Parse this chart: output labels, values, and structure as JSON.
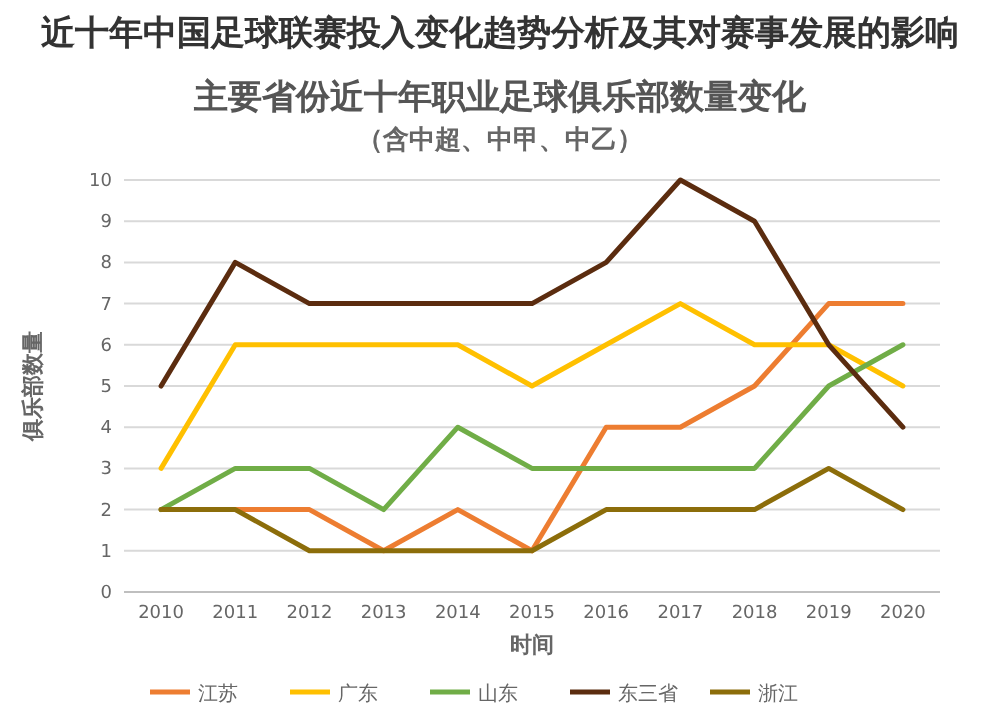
{
  "chart_data": {
    "type": "line",
    "title": "主要省份近十年职业足球俱乐部数量变化",
    "subtitle": "（含中超、中甲、中乙）",
    "xlabel": "时间",
    "ylabel": "俱乐部数量",
    "annotations": [
      "近十年中国足球联赛投入变化趋势分析及其对赛事发展的影响"
    ],
    "categories": [
      "2010",
      "2011",
      "2012",
      "2013",
      "2014",
      "2015",
      "2016",
      "2017",
      "2018",
      "2019",
      "2020"
    ],
    "series": [
      {
        "name": "江苏",
        "color": "#ed7d31",
        "values": [
          2,
          2,
          2,
          1,
          2,
          1,
          4,
          4,
          5,
          7,
          7
        ]
      },
      {
        "name": "广东",
        "color": "#ffc000",
        "values": [
          3,
          6,
          6,
          6,
          6,
          5,
          6,
          7,
          6,
          6,
          5
        ]
      },
      {
        "name": "山东",
        "color": "#70ad47",
        "values": [
          2,
          3,
          3,
          2,
          4,
          3,
          3,
          3,
          3,
          5,
          6
        ]
      },
      {
        "name": "东三省",
        "color": "#5b2c0f",
        "values": [
          5,
          8,
          7,
          7,
          7,
          7,
          8,
          10,
          9,
          6,
          4
        ]
      },
      {
        "name": "浙江",
        "color": "#8c6d0a",
        "values": [
          2,
          2,
          1,
          1,
          1,
          1,
          2,
          2,
          2,
          3,
          2
        ]
      }
    ],
    "ylim": [
      0,
      10
    ],
    "yticks": [
      0,
      1,
      2,
      3,
      4,
      5,
      6,
      7,
      8,
      9,
      10
    ],
    "grid": "y",
    "legend": "bottom",
    "marker": "none",
    "line_style": "solid"
  }
}
